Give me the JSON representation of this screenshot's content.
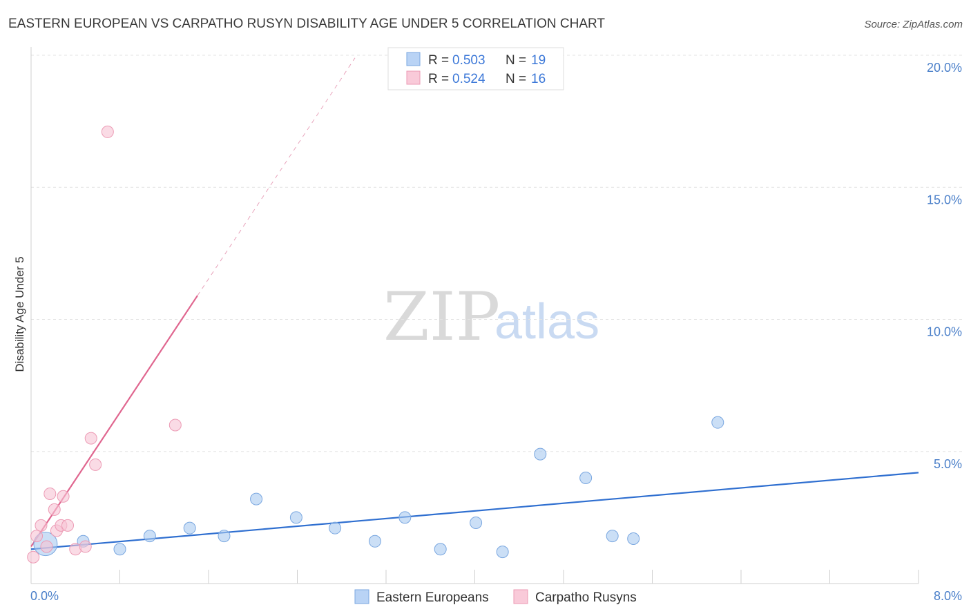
{
  "chart_data": {
    "type": "scatter",
    "title": "EASTERN EUROPEAN VS CARPATHO RUSYN DISABILITY AGE UNDER 5 CORRELATION CHART",
    "source": "Source: ZipAtlas.com",
    "xlabel": "",
    "ylabel": "Disability Age Under 5",
    "xlim": [
      0,
      8
    ],
    "ylim": [
      0,
      20
    ],
    "x_tick_labels": [
      {
        "value": 0,
        "label": "0.0%"
      },
      {
        "value": 8,
        "label": "8.0%"
      }
    ],
    "y_tick_labels": [
      {
        "value": 5,
        "label": "5.0%"
      },
      {
        "value": 10,
        "label": "10.0%"
      },
      {
        "value": 15,
        "label": "15.0%"
      },
      {
        "value": 20,
        "label": "20.0%"
      }
    ],
    "watermark": {
      "part1": "ZIP",
      "part2": "atlas"
    },
    "legend": [
      {
        "r_label": "R =",
        "r_value": "0.503",
        "n_label": "N =",
        "n_value": "19"
      },
      {
        "r_label": "R =",
        "r_value": "0.524",
        "n_label": "N =",
        "n_value": "16"
      }
    ],
    "series": [
      {
        "name": "Eastern Europeans",
        "color": "#a9c9f0",
        "stroke": "#7aa7e0",
        "line_color": "#2f6fd0",
        "trend": {
          "x0": 0.0,
          "y0": 1.3,
          "x1": 8.0,
          "y1": 4.2
        },
        "points": [
          {
            "x": 0.13,
            "y": 1.5,
            "big": true
          },
          {
            "x": 0.47,
            "y": 1.6
          },
          {
            "x": 0.8,
            "y": 1.3
          },
          {
            "x": 1.07,
            "y": 1.8
          },
          {
            "x": 1.43,
            "y": 2.1
          },
          {
            "x": 1.74,
            "y": 1.8
          },
          {
            "x": 2.03,
            "y": 3.2
          },
          {
            "x": 2.39,
            "y": 2.5
          },
          {
            "x": 2.74,
            "y": 2.1
          },
          {
            "x": 3.1,
            "y": 1.6
          },
          {
            "x": 3.37,
            "y": 2.5
          },
          {
            "x": 3.69,
            "y": 1.3
          },
          {
            "x": 4.01,
            "y": 2.3
          },
          {
            "x": 4.25,
            "y": 1.2
          },
          {
            "x": 4.59,
            "y": 4.9
          },
          {
            "x": 5.0,
            "y": 4.0
          },
          {
            "x": 5.24,
            "y": 1.8
          },
          {
            "x": 5.43,
            "y": 1.7
          },
          {
            "x": 6.19,
            "y": 6.1
          }
        ]
      },
      {
        "name": "Carpatho Rusyns",
        "color": "#f6c3d3",
        "stroke": "#ec9ab4",
        "line_color": "#e0668f",
        "trend": {
          "x0": 0.0,
          "y0": 1.4,
          "x1": 1.5,
          "y1": 10.9
        },
        "trend_ext": {
          "x0": 1.5,
          "y0": 10.9,
          "x1": 2.92,
          "y1": 19.9
        },
        "points": [
          {
            "x": 0.02,
            "y": 1.0
          },
          {
            "x": 0.05,
            "y": 1.8
          },
          {
            "x": 0.09,
            "y": 2.2
          },
          {
            "x": 0.14,
            "y": 1.4
          },
          {
            "x": 0.17,
            "y": 3.4
          },
          {
            "x": 0.21,
            "y": 2.8
          },
          {
            "x": 0.23,
            "y": 2.0
          },
          {
            "x": 0.27,
            "y": 2.2
          },
          {
            "x": 0.29,
            "y": 3.3
          },
          {
            "x": 0.33,
            "y": 2.2
          },
          {
            "x": 0.4,
            "y": 1.3
          },
          {
            "x": 0.49,
            "y": 1.4
          },
          {
            "x": 0.54,
            "y": 5.5
          },
          {
            "x": 0.58,
            "y": 4.5
          },
          {
            "x": 0.69,
            "y": 17.1
          },
          {
            "x": 1.3,
            "y": 6.0
          }
        ]
      }
    ]
  }
}
